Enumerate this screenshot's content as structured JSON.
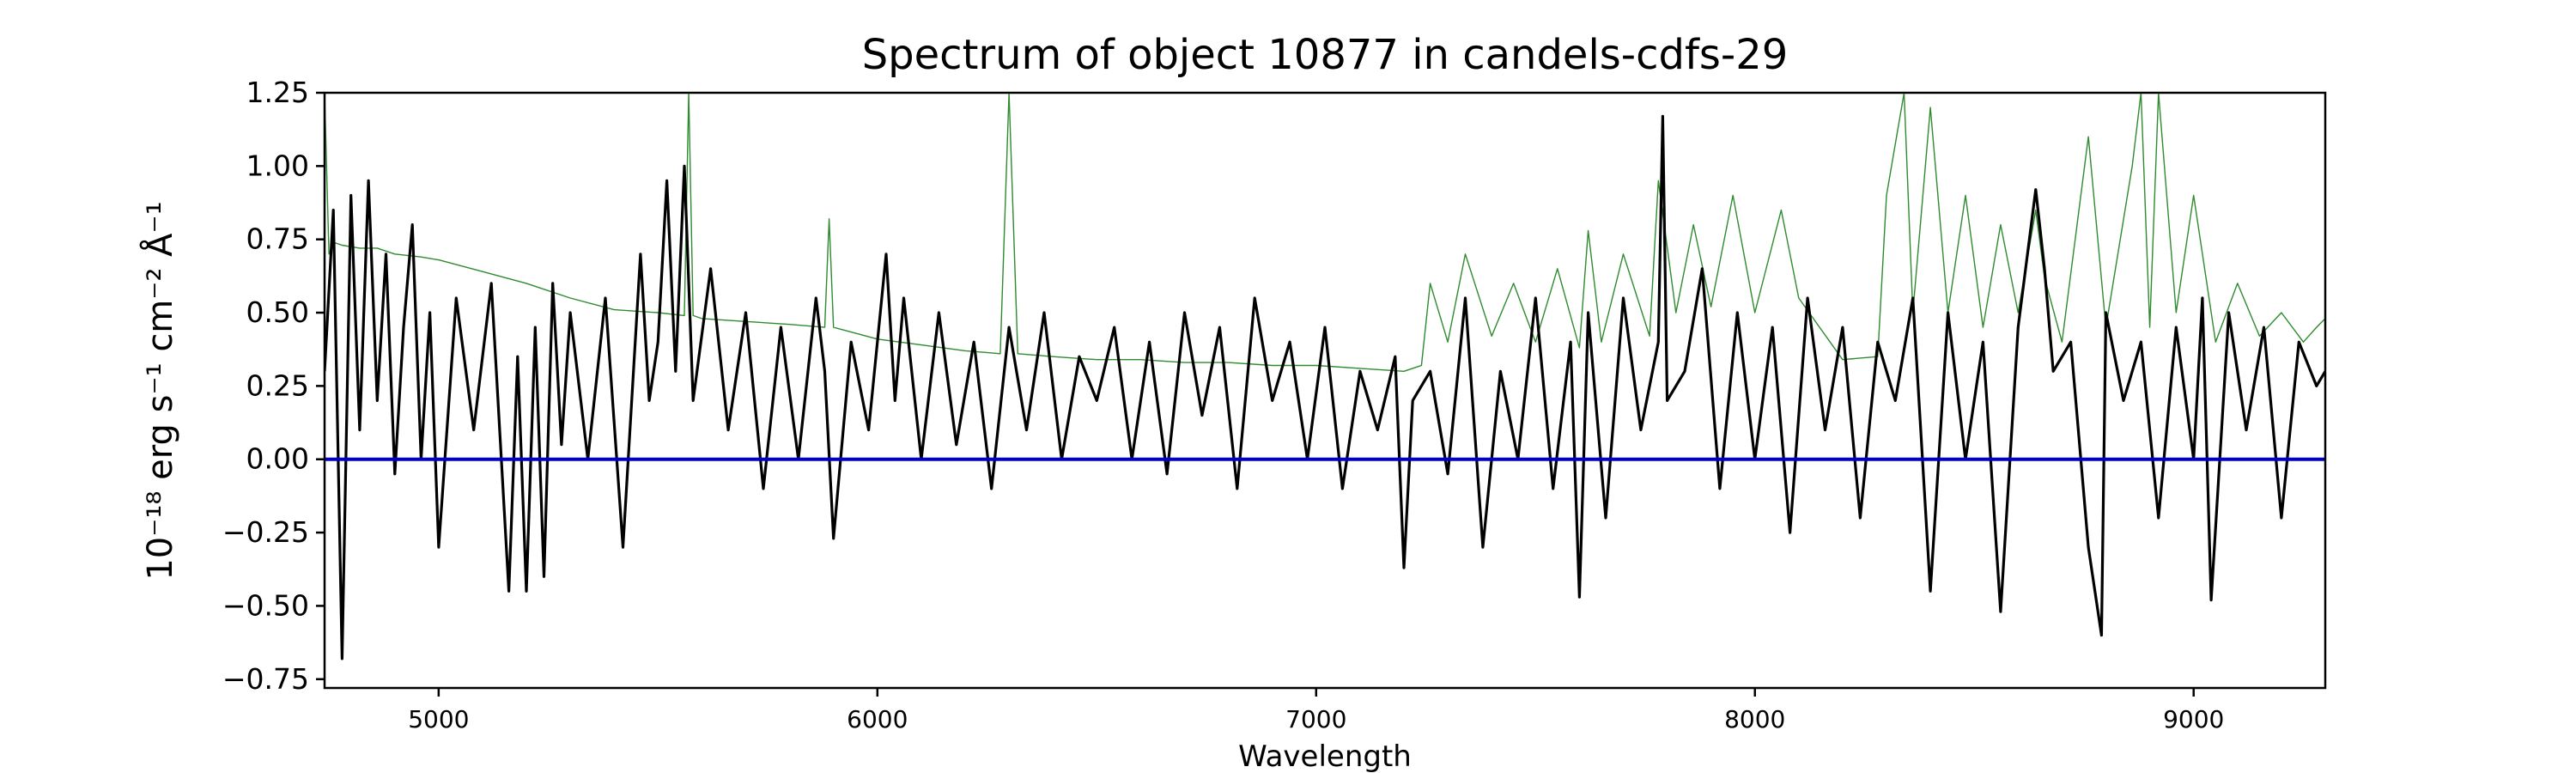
{
  "chart_data": {
    "type": "line",
    "title": "Spectrum of object 10877 in candels-cdfs-29",
    "xlabel": "Wavelength",
    "ylabel": "10⁻¹⁸ erg s⁻¹ cm⁻² Å⁻¹",
    "xlim": [
      4740,
      9300
    ],
    "ylim": [
      -0.78,
      1.25
    ],
    "xticks": [
      5000,
      6000,
      7000,
      8000,
      9000
    ],
    "xtick_labels": [
      "5000",
      "6000",
      "7000",
      "8000",
      "9000"
    ],
    "yticks": [
      -0.75,
      -0.5,
      -0.25,
      0.0,
      0.25,
      0.5,
      0.75,
      1.0,
      1.25
    ],
    "ytick_labels": [
      "−0.75",
      "−0.50",
      "−0.25",
      "0.00",
      "0.25",
      "0.50",
      "0.75",
      "1.00",
      "1.25"
    ],
    "grid": false,
    "legend": "none",
    "series": [
      {
        "role": "flux",
        "color": "#000000",
        "x": [
          4740,
          4760,
          4780,
          4800,
          4820,
          4840,
          4860,
          4880,
          4900,
          4920,
          4940,
          4960,
          4980,
          5000,
          5040,
          5080,
          5120,
          5160,
          5180,
          5200,
          5220,
          5240,
          5260,
          5280,
          5300,
          5340,
          5380,
          5420,
          5460,
          5480,
          5500,
          5520,
          5540,
          5560,
          5580,
          5620,
          5660,
          5700,
          5740,
          5780,
          5820,
          5860,
          5880,
          5900,
          5940,
          5980,
          6020,
          6040,
          6060,
          6100,
          6140,
          6180,
          6220,
          6260,
          6300,
          6340,
          6380,
          6420,
          6460,
          6500,
          6540,
          6580,
          6620,
          6660,
          6700,
          6740,
          6780,
          6820,
          6860,
          6900,
          6940,
          6980,
          7020,
          7060,
          7100,
          7140,
          7180,
          7200,
          7220,
          7260,
          7300,
          7340,
          7380,
          7420,
          7460,
          7500,
          7540,
          7580,
          7600,
          7620,
          7660,
          7700,
          7740,
          7780,
          7790,
          7800,
          7840,
          7880,
          7920,
          7960,
          8000,
          8040,
          8080,
          8120,
          8160,
          8200,
          8240,
          8280,
          8320,
          8360,
          8400,
          8440,
          8480,
          8520,
          8560,
          8600,
          8640,
          8660,
          8680,
          8720,
          8760,
          8790,
          8800,
          8840,
          8880,
          8920,
          8960,
          9000,
          9020,
          9040,
          9080,
          9120,
          9160,
          9200,
          9240,
          9280,
          9300
        ],
        "y": [
          0.3,
          0.85,
          -0.68,
          0.9,
          0.1,
          0.95,
          0.2,
          0.7,
          -0.05,
          0.45,
          0.8,
          0.0,
          0.5,
          -0.3,
          0.55,
          0.1,
          0.6,
          -0.45,
          0.35,
          -0.45,
          0.45,
          -0.4,
          0.6,
          0.05,
          0.5,
          0.0,
          0.55,
          -0.3,
          0.7,
          0.2,
          0.4,
          0.95,
          0.3,
          1.0,
          0.2,
          0.65,
          0.1,
          0.5,
          -0.1,
          0.45,
          0.0,
          0.55,
          0.3,
          -0.27,
          0.4,
          0.1,
          0.7,
          0.2,
          0.55,
          0.0,
          0.5,
          0.05,
          0.4,
          -0.1,
          0.45,
          0.1,
          0.5,
          0.0,
          0.35,
          0.2,
          0.45,
          0.0,
          0.4,
          -0.05,
          0.5,
          0.15,
          0.45,
          -0.1,
          0.55,
          0.2,
          0.4,
          0.0,
          0.45,
          -0.1,
          0.3,
          0.1,
          0.35,
          -0.37,
          0.2,
          0.3,
          -0.05,
          0.55,
          -0.3,
          0.3,
          0.0,
          0.55,
          -0.1,
          0.4,
          -0.47,
          0.5,
          -0.2,
          0.55,
          0.1,
          0.4,
          1.17,
          0.2,
          0.3,
          0.65,
          -0.1,
          0.5,
          0.0,
          0.45,
          -0.25,
          0.55,
          0.1,
          0.45,
          -0.2,
          0.4,
          0.2,
          0.55,
          -0.45,
          0.5,
          0.0,
          0.4,
          -0.52,
          0.45,
          0.92,
          0.65,
          0.3,
          0.4,
          -0.3,
          -0.6,
          0.5,
          0.2,
          0.4,
          -0.2,
          0.45,
          0.0,
          0.55,
          -0.48,
          0.5,
          0.1,
          0.45,
          -0.2,
          0.4,
          0.25,
          0.3
        ]
      },
      {
        "role": "model",
        "color": "#2e8b2e",
        "x": [
          4740,
          4750,
          4760,
          4780,
          4820,
          4860,
          4900,
          4960,
          5000,
          5100,
          5200,
          5300,
          5400,
          5500,
          5560,
          5570,
          5580,
          5600,
          5700,
          5800,
          5880,
          5890,
          5900,
          5950,
          6000,
          6100,
          6200,
          6280,
          6300,
          6320,
          6400,
          6500,
          6600,
          6700,
          6800,
          6900,
          7000,
          7100,
          7200,
          7240,
          7260,
          7300,
          7340,
          7400,
          7450,
          7500,
          7550,
          7600,
          7620,
          7650,
          7700,
          7760,
          7780,
          7820,
          7860,
          7900,
          7950,
          8000,
          8060,
          8100,
          8200,
          8280,
          8300,
          8340,
          8360,
          8400,
          8440,
          8480,
          8520,
          8560,
          8600,
          8640,
          8660,
          8700,
          8760,
          8800,
          8860,
          8880,
          8900,
          8920,
          8960,
          9000,
          9050,
          9100,
          9150,
          9200,
          9250,
          9280,
          9300
        ],
        "y": [
          1.25,
          0.7,
          0.74,
          0.73,
          0.72,
          0.72,
          0.7,
          0.69,
          0.68,
          0.64,
          0.6,
          0.55,
          0.51,
          0.5,
          0.49,
          1.25,
          0.49,
          0.48,
          0.47,
          0.46,
          0.45,
          0.82,
          0.45,
          0.43,
          0.41,
          0.39,
          0.37,
          0.36,
          1.25,
          0.36,
          0.35,
          0.34,
          0.34,
          0.33,
          0.33,
          0.32,
          0.32,
          0.31,
          0.3,
          0.32,
          0.6,
          0.4,
          0.7,
          0.42,
          0.6,
          0.4,
          0.65,
          0.38,
          0.78,
          0.4,
          0.7,
          0.42,
          0.95,
          0.5,
          0.8,
          0.52,
          0.9,
          0.5,
          0.85,
          0.55,
          0.34,
          0.35,
          0.9,
          1.25,
          0.5,
          1.2,
          0.5,
          0.9,
          0.45,
          0.8,
          0.5,
          0.85,
          0.62,
          0.4,
          1.1,
          0.45,
          1.0,
          1.25,
          0.45,
          1.25,
          0.5,
          0.9,
          0.4,
          0.6,
          0.42,
          0.5,
          0.4,
          0.45,
          0.48
        ]
      },
      {
        "role": "zero-line",
        "color": "#0000cc",
        "x": [
          4740,
          9300
        ],
        "y": [
          0.0,
          0.0
        ]
      }
    ]
  }
}
